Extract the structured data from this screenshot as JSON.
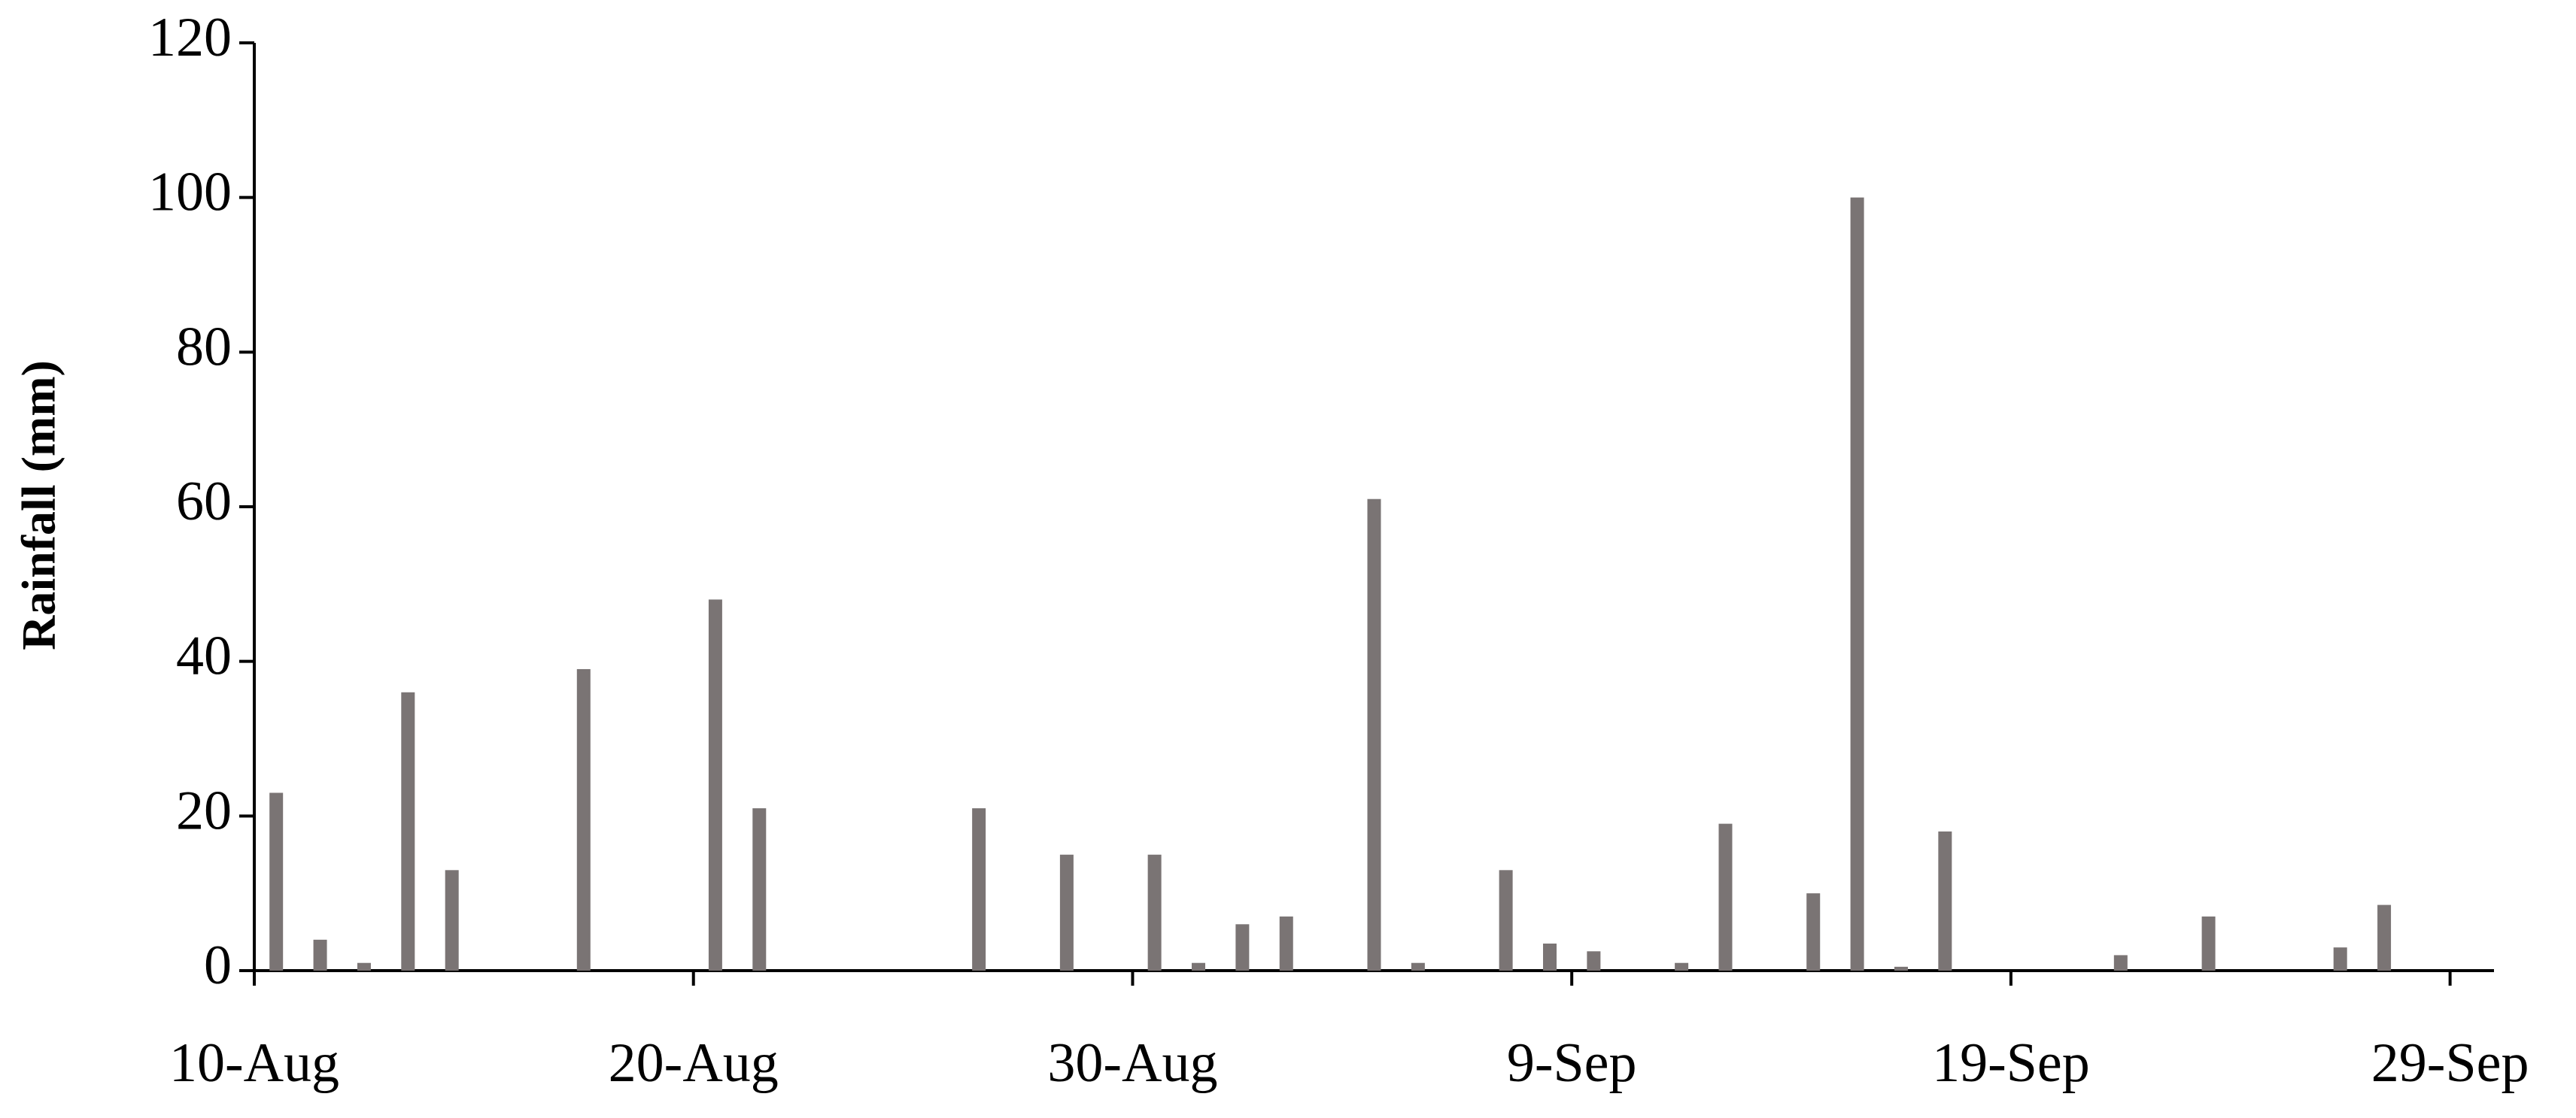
{
  "chart_data": {
    "type": "bar",
    "y_label": "Rainfall (mm)",
    "categories": [
      "10-Aug",
      null,
      null,
      null,
      null,
      null,
      null,
      null,
      null,
      null,
      "20-Aug",
      null,
      null,
      null,
      null,
      null,
      null,
      null,
      null,
      null,
      "30-Aug",
      null,
      null,
      null,
      null,
      null,
      null,
      null,
      null,
      null,
      "9-Sep",
      null,
      null,
      null,
      null,
      null,
      null,
      null,
      null,
      null,
      "19-Sep",
      null,
      null,
      null,
      null,
      null,
      null,
      null,
      null,
      null,
      "29-Sep"
    ],
    "values": [
      23,
      4,
      1,
      36,
      13,
      0,
      0,
      39,
      0,
      0,
      48,
      21,
      0,
      0,
      0,
      0,
      21,
      0,
      15,
      0,
      15,
      1,
      6,
      7,
      0,
      61,
      1,
      0,
      13,
      3.5,
      2.5,
      0,
      1,
      19,
      0,
      10,
      100,
      0.5,
      18,
      0,
      0,
      0,
      2,
      0,
      7,
      0,
      0,
      3,
      8.5,
      0,
      0
    ],
    "color": "#7a7474",
    "ylim": [
      0,
      120
    ],
    "yticks": [
      0,
      20,
      40,
      60,
      80,
      100,
      120
    ],
    "grid": false
  }
}
